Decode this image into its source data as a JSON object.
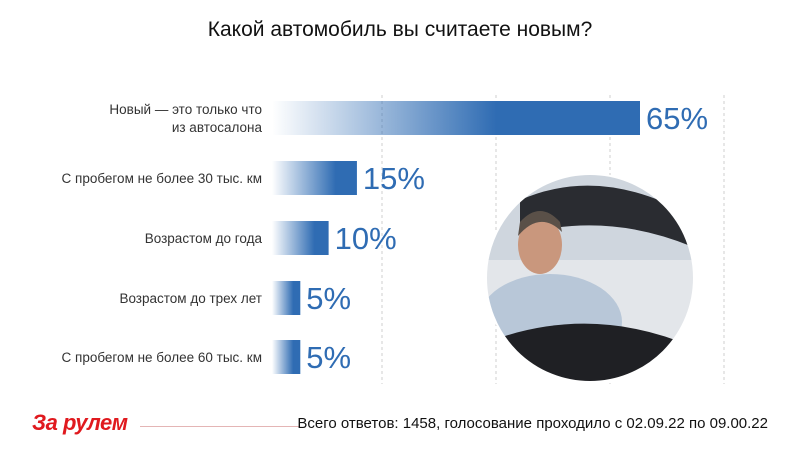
{
  "title": "Какой автомобиль вы считаете новым?",
  "footer": {
    "brand": "За рулем",
    "note": "Всего ответов: 1458, голосование проходило с 02.09.22 по 09.00.22"
  },
  "colors": {
    "bar": "#2f6cb3",
    "value_text": "#2f6cb3",
    "brand": "#e0191e"
  },
  "chart_data": {
    "type": "bar",
    "orientation": "horizontal",
    "title": "Какой автомобиль вы считаете новым?",
    "categories": [
      [
        "Новый — это только что",
        "из автосалона"
      ],
      [
        "С пробегом не более 30 тыс. км"
      ],
      [
        "Возрастом до года"
      ],
      [
        "Возрастом до трех лет"
      ],
      [
        "С пробегом не более 60 тыс. км"
      ]
    ],
    "values": [
      65,
      15,
      10,
      5,
      5
    ],
    "value_labels": [
      "65%",
      "15%",
      "10%",
      "5%",
      "5%"
    ],
    "unit": "%",
    "xlim": [
      0,
      65
    ],
    "grid": "vertical dashed",
    "legend": "none"
  }
}
